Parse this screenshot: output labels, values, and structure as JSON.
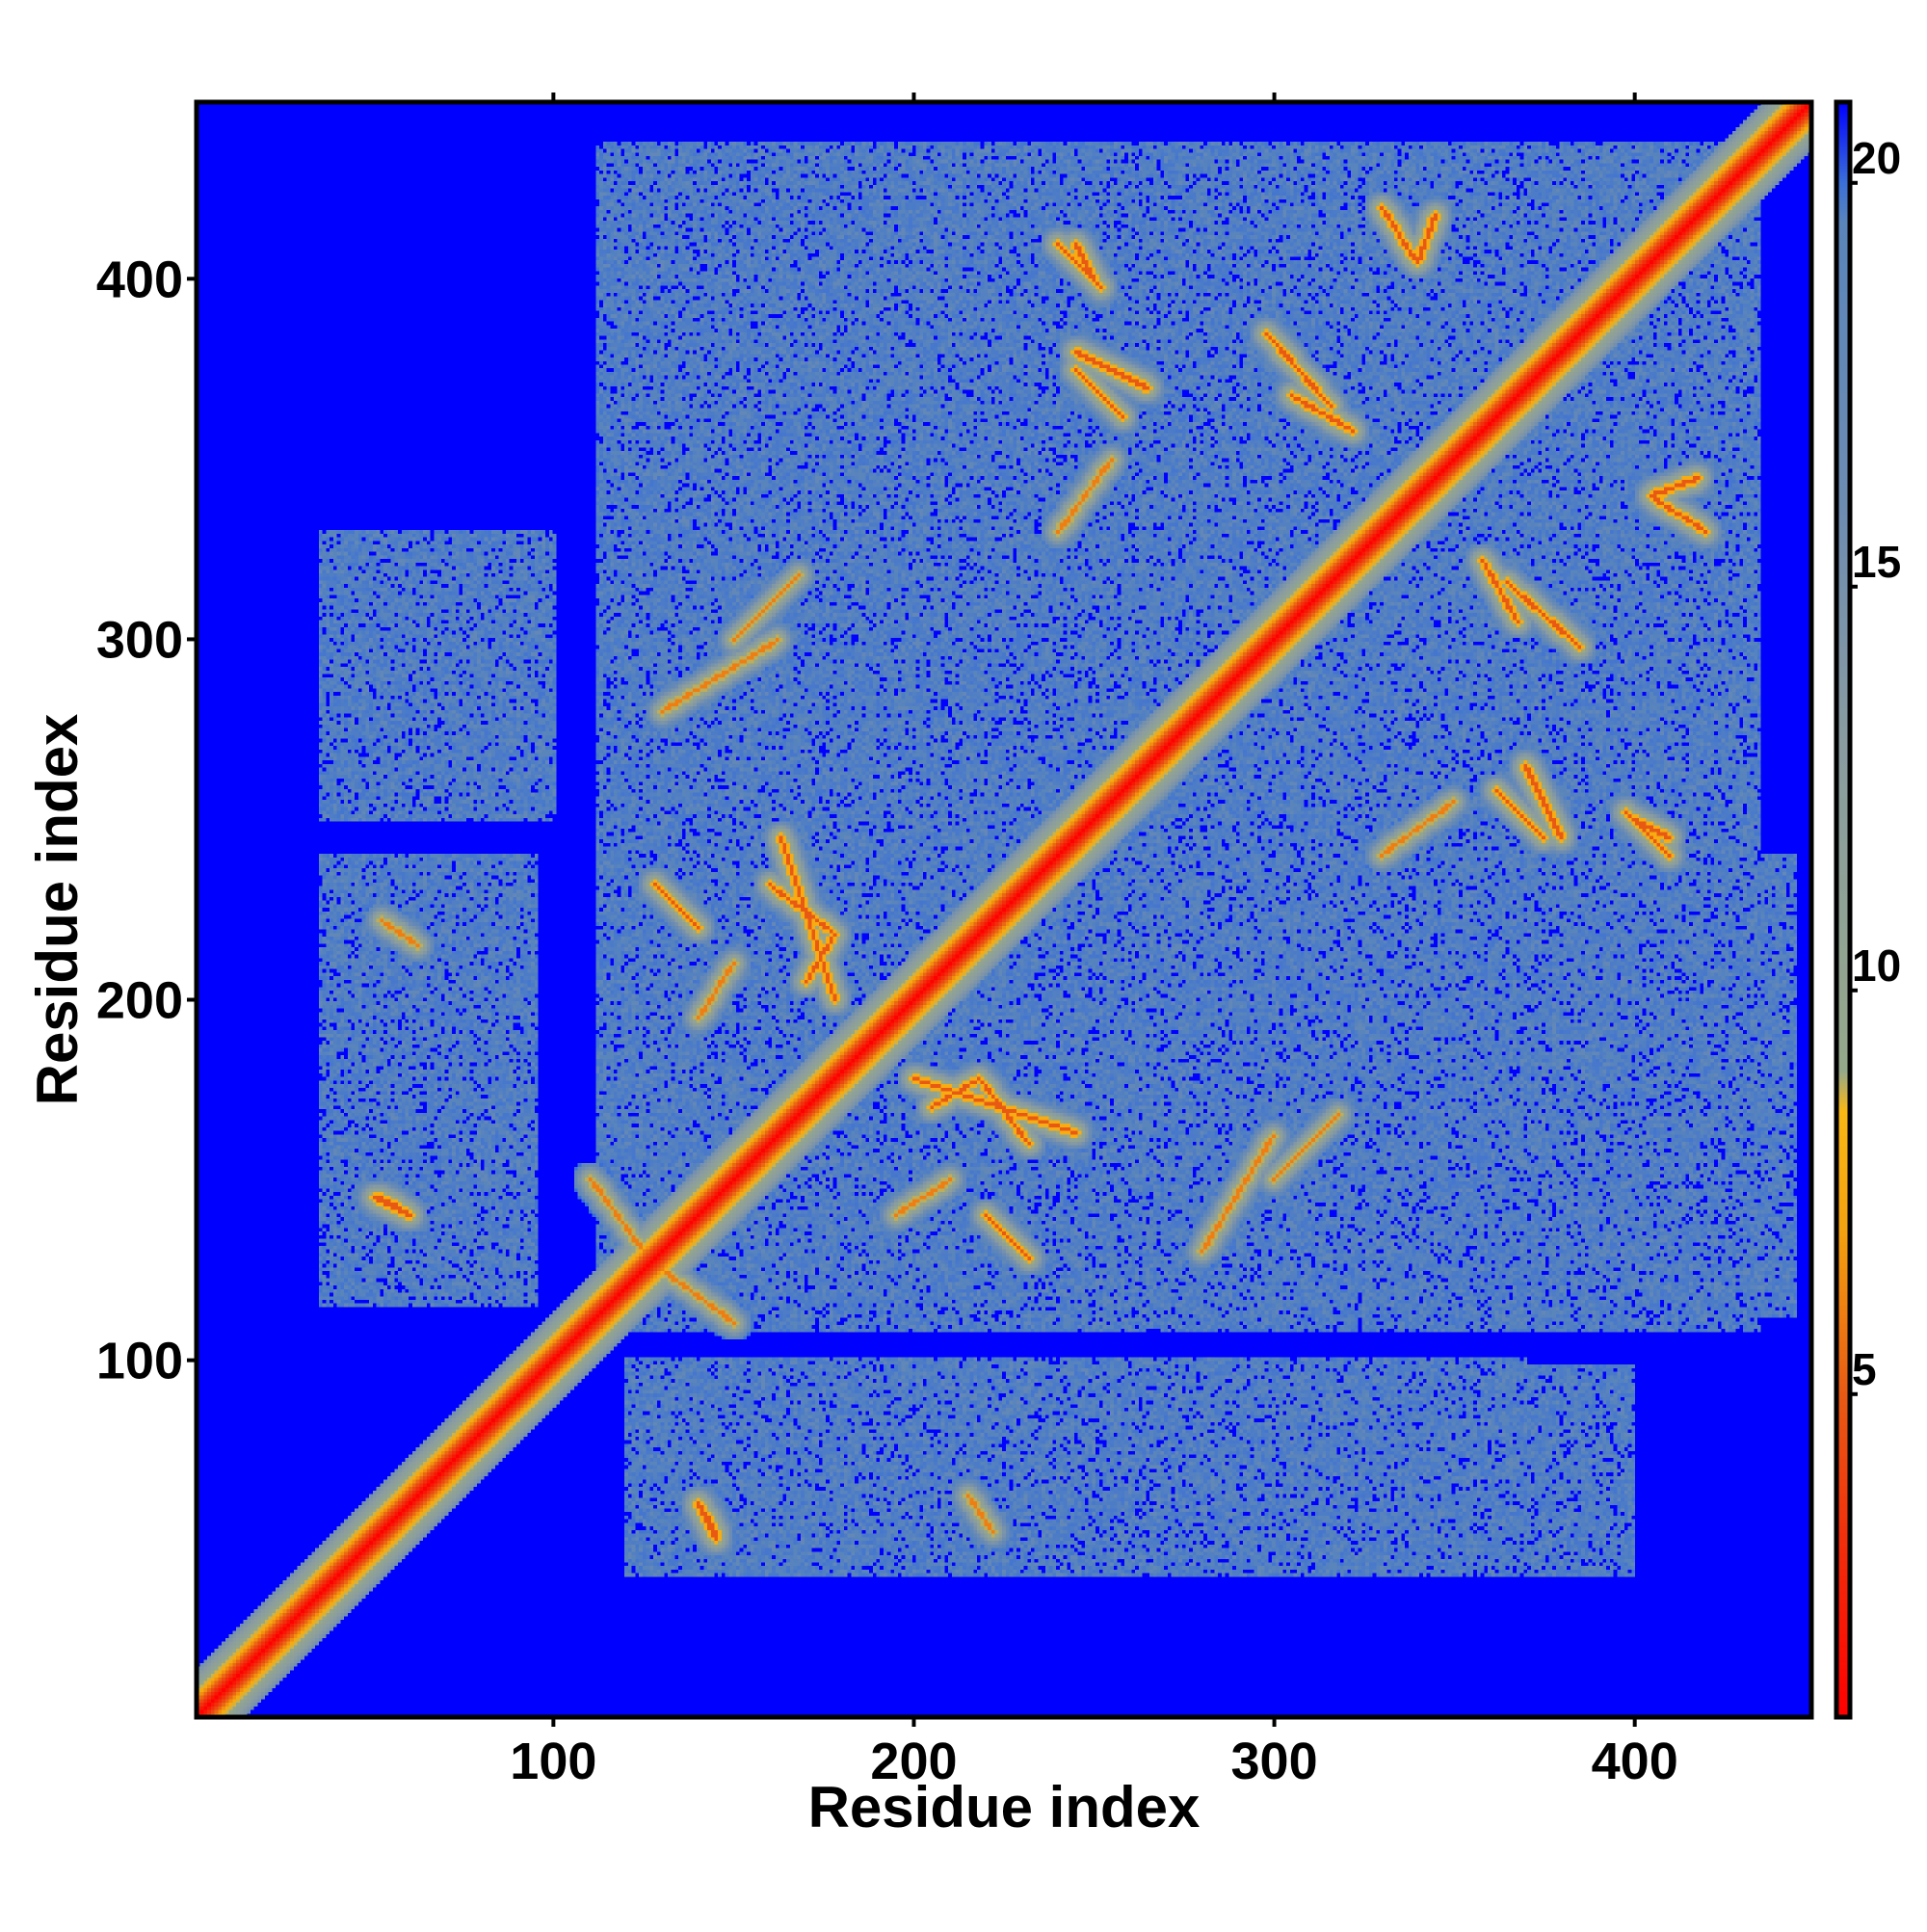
{
  "chart_data": {
    "type": "heatmap",
    "title": "",
    "xlabel": "Residue index",
    "ylabel": "Residue index",
    "xlim": [
      1,
      449
    ],
    "ylim": [
      1,
      449
    ],
    "x_ticks": [
      100,
      200,
      300,
      400
    ],
    "y_ticks": [
      100,
      200,
      300,
      400
    ],
    "n_residues": 449,
    "value_range": [
      1,
      21
    ],
    "background_value": 21,
    "colorbar": {
      "ticks": [
        5,
        10,
        15,
        20
      ],
      "stops": [
        {
          "value": 1,
          "color": "#ff0000"
        },
        {
          "value": 3,
          "color": "#f22a0a"
        },
        {
          "value": 5,
          "color": "#e85a14"
        },
        {
          "value": 7,
          "color": "#f4a10f"
        },
        {
          "value": 8.5,
          "color": "#f9b814"
        },
        {
          "value": 9,
          "color": "#96a88a"
        },
        {
          "value": 13,
          "color": "#8a9ca0"
        },
        {
          "value": 16,
          "color": "#6d8cb2"
        },
        {
          "value": 19.5,
          "color": "#5a85bb"
        },
        {
          "value": 20,
          "color": "#3b6fd8"
        },
        {
          "value": 21,
          "color": "#0000ff"
        }
      ]
    },
    "contact_regions": [
      {
        "x": [
          112,
          435
        ],
        "y": [
          108,
          438
        ]
      },
      {
        "x": [
          112,
          445
        ],
        "y": [
          112,
          240
        ]
      },
      {
        "x": [
          35,
          100
        ],
        "y": [
          250,
          330
        ]
      },
      {
        "x": [
          35,
          95
        ],
        "y": [
          115,
          240
        ]
      },
      {
        "x": [
          120,
          240
        ],
        "y": [
          40,
          100
        ]
      },
      {
        "x": [
          240,
          370
        ],
        "y": [
          40,
          100
        ]
      },
      {
        "x": [
          275,
          400
        ],
        "y": [
          40,
          98
        ]
      }
    ],
    "contact_bands": [
      {
        "from": [
          130,
          125
        ],
        "to": [
          150,
          110
        ],
        "value": 6
      },
      {
        "from": [
          163,
          245
        ],
        "to": [
          178,
          200
        ],
        "value": 5
      },
      {
        "from": [
          205,
          170
        ],
        "to": [
          218,
          178
        ],
        "value": 5
      },
      {
        "from": [
          218,
          178
        ],
        "to": [
          232,
          160
        ],
        "value": 5
      },
      {
        "from": [
          220,
          140
        ],
        "to": [
          232,
          128
        ],
        "value": 5
      },
      {
        "from": [
          240,
          410
        ],
        "to": [
          252,
          398
        ],
        "value": 5
      },
      {
        "from": [
          245,
          375
        ],
        "to": [
          258,
          362
        ],
        "value": 5
      },
      {
        "from": [
          305,
          368
        ],
        "to": [
          322,
          358
        ],
        "value": 5
      },
      {
        "from": [
          330,
          420
        ],
        "to": [
          340,
          405
        ],
        "value": 5
      },
      {
        "from": [
          405,
          340
        ],
        "to": [
          418,
          345
        ],
        "value": 5
      },
      {
        "from": [
          365,
          316
        ],
        "to": [
          385,
          298
        ],
        "value": 5
      },
      {
        "from": [
          400,
          250
        ],
        "to": [
          410,
          245
        ],
        "value": 5
      },
      {
        "from": [
          300,
          150
        ],
        "to": [
          318,
          168
        ],
        "value": 6
      },
      {
        "from": [
          140,
          195
        ],
        "to": [
          150,
          210
        ],
        "value": 6
      },
      {
        "from": [
          130,
          280
        ],
        "to": [
          162,
          300
        ],
        "value": 6
      },
      {
        "from": [
          370,
          265
        ],
        "to": [
          380,
          245
        ],
        "value": 5
      },
      {
        "from": [
          330,
          240
        ],
        "to": [
          350,
          255
        ],
        "value": 6
      },
      {
        "from": [
          50,
          145
        ],
        "to": [
          60,
          140
        ],
        "value": 5
      },
      {
        "from": [
          140,
          60
        ],
        "to": [
          145,
          52
        ],
        "value": 5
      },
      {
        "from": [
          215,
          62
        ],
        "to": [
          222,
          52
        ],
        "value": 6
      }
    ]
  }
}
